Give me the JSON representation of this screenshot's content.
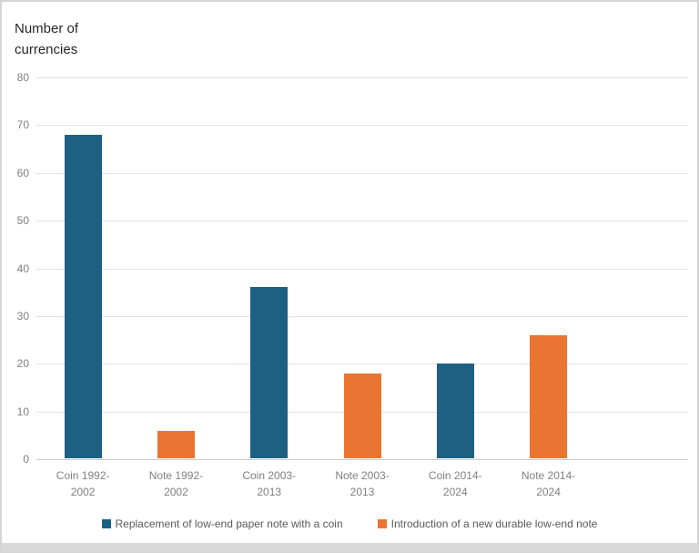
{
  "chart_data": {
    "type": "bar",
    "title": "Number of currencies",
    "categories": [
      "Coin 1992-2002",
      "Note 1992-2002",
      "Coin 2003-2013",
      "Note 2003-2013",
      "Coin 2014-2024",
      "Note 2014-2024"
    ],
    "series": [
      {
        "name": "Replacement of low-end paper note with a coin",
        "color": "#1e6082",
        "values": [
          68,
          null,
          36,
          null,
          20,
          null
        ]
      },
      {
        "name": "Introduction of a new durable low-end note",
        "color": "#ea7431",
        "values": [
          null,
          6,
          null,
          18,
          null,
          26
        ]
      }
    ],
    "bar_values_flat": [
      68,
      6,
      36,
      18,
      20,
      26
    ],
    "xlabel": "",
    "ylabel": "Number of currencies",
    "ylim": [
      0,
      80
    ],
    "yticks": [
      0,
      10,
      20,
      30,
      40,
      50,
      60,
      70,
      80
    ],
    "grid": true,
    "legend_position": "bottom"
  },
  "colors": {
    "coin_series": "#1e6082",
    "note_series": "#ea7431",
    "gridline": "#e2e2e2",
    "axis_baseline": "#cccccc",
    "tick_label": "#7f7f7f",
    "legend_text": "#595959",
    "title_text": "#262626",
    "window_edge": "#d9d9d9"
  }
}
